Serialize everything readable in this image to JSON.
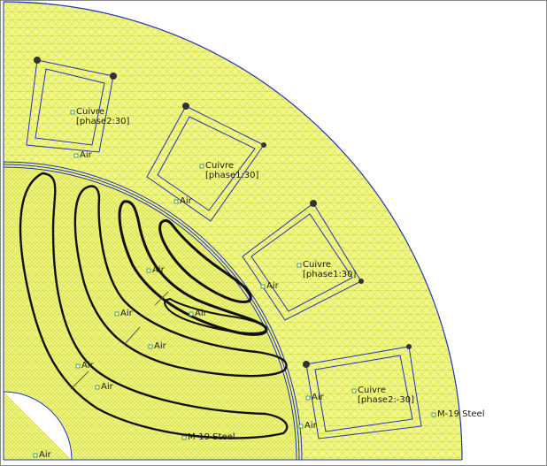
{
  "colors": {
    "background": "#ffffff",
    "mesh_fill": "#f2f78a",
    "mesh_lines": "#c9d42a",
    "boundary": "#2233bb",
    "magnet_outline": "#111111",
    "label_marker": "#2e8b2e"
  },
  "labels": {
    "coil_top": [
      "Cuivre",
      "[phase2:30]"
    ],
    "coil_upper_mid": [
      "Cuivre",
      "[phase1:30]"
    ],
    "coil_lower_mid": [
      "Cuivre",
      "[phase1:30]"
    ],
    "coil_bottom": [
      "Cuivre",
      "[phase2:-30]"
    ],
    "air_gap_top": "Air",
    "air_gap_mid": "Air",
    "air_gap_right": "Air",
    "air_gap_bottom_right": "Air",
    "air_gap_low": "Air",
    "air_rotor_1": "Air",
    "air_rotor_2": "Air",
    "air_rotor_3": "Air",
    "air_rotor_4": "Air",
    "air_rotor_5": "Air",
    "air_shaft": "Air",
    "steel_rotor": "M-19 Steel",
    "steel_stator": "M-19 Steel"
  }
}
